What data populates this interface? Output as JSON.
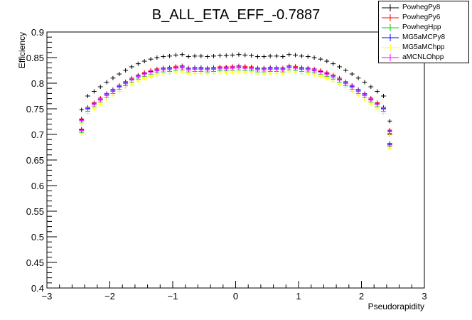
{
  "chart_data": {
    "type": "scatter",
    "title": "B_ALL_ETA_EFF_-0.7887",
    "xlabel": "Pseudorapidity",
    "ylabel": "Efficiency",
    "xlim": [
      -3,
      3
    ],
    "ylim": [
      0.4,
      0.9
    ],
    "xticks": [
      "−3",
      "−2",
      "−1",
      "0",
      "1",
      "2",
      "3"
    ],
    "yticks": [
      "0.4",
      "0.45",
      "0.5",
      "0.55",
      "0.6",
      "0.65",
      "0.7",
      "0.75",
      "0.8",
      "0.85",
      "0.9"
    ],
    "legend_position": "top-right",
    "series": [
      {
        "name": "PowhegPy8",
        "color": "#000000",
        "offset": 0.0
      },
      {
        "name": "PowhegPy6",
        "color": "#ff0000",
        "offset": -0.022
      },
      {
        "name": "PowhegHpp",
        "color": "#00cc00",
        "offset": -0.03
      },
      {
        "name": "MG5aMCPy8",
        "color": "#0000ff",
        "offset": -0.024
      },
      {
        "name": "MG5aMChpp",
        "color": "#ffff00",
        "offset": -0.034
      },
      {
        "name": "aMCNLOhpp",
        "color": "#ff00ff",
        "offset": -0.026
      }
    ],
    "x": [
      -2.45,
      -2.35,
      -2.25,
      -2.15,
      -2.05,
      -1.95,
      -1.85,
      -1.75,
      -1.65,
      -1.55,
      -1.45,
      -1.35,
      -1.25,
      -1.15,
      -1.05,
      -0.95,
      -0.85,
      -0.75,
      -0.65,
      -0.55,
      -0.45,
      -0.35,
      -0.25,
      -0.15,
      -0.05,
      0.05,
      0.15,
      0.25,
      0.35,
      0.45,
      0.55,
      0.65,
      0.75,
      0.85,
      0.95,
      1.05,
      1.15,
      1.25,
      1.35,
      1.45,
      1.55,
      1.65,
      1.75,
      1.85,
      1.95,
      2.05,
      2.15,
      2.25,
      2.35,
      2.45
    ],
    "base": [
      0.71,
      0.775,
      0.784,
      0.793,
      0.802,
      0.81,
      0.818,
      0.825,
      0.832,
      0.838,
      0.843,
      0.847,
      0.85,
      0.852,
      0.853,
      0.855,
      0.856,
      0.852,
      0.853,
      0.853,
      0.852,
      0.853,
      0.854,
      0.854,
      0.855,
      0.856,
      0.855,
      0.854,
      0.852,
      0.852,
      0.853,
      0.853,
      0.852,
      0.856,
      0.855,
      0.853,
      0.852,
      0.85,
      0.847,
      0.843,
      0.838,
      0.832,
      0.825,
      0.818,
      0.81,
      0.802,
      0.793,
      0.784,
      0.775,
      0.715
    ],
    "edge": [
      0.728,
      0.748,
      0.7,
      0.726
    ]
  }
}
